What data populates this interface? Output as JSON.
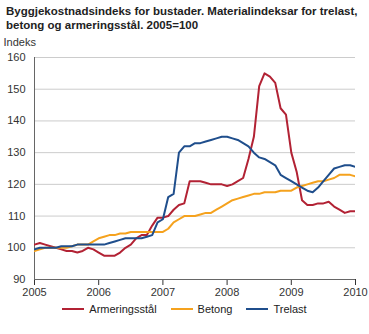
{
  "chart_data": {
    "type": "line",
    "title": "Byggjekostnadsindeks for bustader. Materialindeksar for trelast, betong og armeringsstål. 2005=100",
    "y_label": "Indeks",
    "x": [
      2005,
      2005.083,
      2005.167,
      2005.25,
      2005.333,
      2005.417,
      2005.5,
      2005.583,
      2005.667,
      2005.75,
      2005.833,
      2005.917,
      2006,
      2006.083,
      2006.167,
      2006.25,
      2006.333,
      2006.417,
      2006.5,
      2006.583,
      2006.667,
      2006.75,
      2006.833,
      2006.917,
      2007,
      2007.083,
      2007.167,
      2007.25,
      2007.333,
      2007.417,
      2007.5,
      2007.583,
      2007.667,
      2007.75,
      2007.833,
      2007.917,
      2008,
      2008.083,
      2008.167,
      2008.25,
      2008.333,
      2008.417,
      2008.5,
      2008.583,
      2008.667,
      2008.75,
      2008.833,
      2008.917,
      2009,
      2009.083,
      2009.167,
      2009.25,
      2009.333,
      2009.417,
      2009.5,
      2009.583,
      2009.667,
      2009.75,
      2009.833,
      2009.917,
      2010
    ],
    "series": [
      {
        "name": "Armeringsstål",
        "color": "#b22234",
        "values": [
          101,
          101.5,
          101,
          100.5,
          100,
          99.5,
          99,
          99,
          98.5,
          99,
          100,
          99.5,
          98.5,
          97.5,
          97.5,
          97.5,
          98.5,
          100,
          101,
          103,
          104,
          104,
          107,
          109.5,
          109.5,
          110,
          112,
          113.5,
          114,
          121,
          121,
          121,
          120.5,
          120,
          120,
          120,
          119.5,
          120,
          121,
          122,
          128,
          135,
          151,
          155,
          154,
          152,
          144,
          142,
          130,
          124,
          115,
          113.5,
          113.5,
          114,
          114,
          114.5,
          113,
          112,
          111,
          111.5,
          111.5
        ]
      },
      {
        "name": "Betong",
        "color": "#f5a21e",
        "values": [
          99,
          99.5,
          100,
          100,
          100,
          100,
          100,
          100.5,
          101,
          101,
          101,
          102,
          103,
          103.5,
          104,
          104,
          104.5,
          104.5,
          105,
          105,
          105,
          105,
          105,
          105,
          105,
          106,
          108,
          109,
          110,
          110,
          110,
          110.5,
          111,
          111,
          112,
          113,
          114,
          115,
          115.5,
          116,
          116.5,
          117,
          117,
          117.5,
          117.5,
          117.5,
          118,
          118,
          118,
          119,
          119.5,
          120,
          120.5,
          121,
          121,
          121.5,
          122,
          123,
          123,
          123,
          122.5
        ]
      },
      {
        "name": "Trelast",
        "color": "#1f4e8c",
        "values": [
          99.5,
          100,
          100,
          100,
          100,
          100.5,
          100.5,
          100.5,
          101,
          101,
          101,
          101,
          101,
          101,
          101.5,
          102,
          102.5,
          103,
          103,
          103,
          103,
          103.5,
          104,
          108,
          109,
          116,
          117,
          130,
          132,
          132,
          133,
          133,
          133.5,
          134,
          134.5,
          135,
          135,
          134.5,
          134,
          133,
          132,
          130,
          128.5,
          128,
          127,
          126,
          123,
          122,
          121,
          120,
          119,
          118,
          117.5,
          119,
          121,
          123,
          125,
          125.5,
          126,
          126,
          125.5
        ]
      }
    ],
    "xlim": [
      2005,
      2010
    ],
    "xticks": [
      2005,
      2006,
      2007,
      2008,
      2009,
      2010
    ],
    "ylim": [
      90,
      160
    ],
    "yticks": [
      90,
      100,
      110,
      120,
      130,
      140,
      150,
      160
    ],
    "grid": true,
    "legend": "bottom"
  }
}
